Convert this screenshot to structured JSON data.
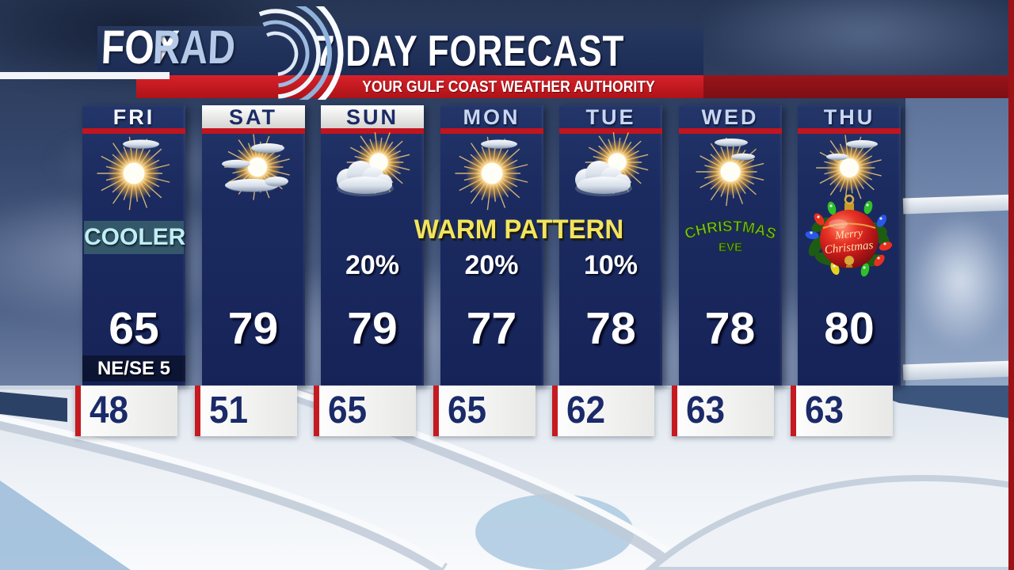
{
  "header": {
    "logo_fox": "FOX",
    "logo_rad": "RAD",
    "logo_name": "foxrad-radar-logo",
    "title": "7 DAY FORECAST",
    "tagline": "YOUR GULF COAST WEATHER AUTHORITY"
  },
  "banners": {
    "warm_pattern": "WARM PATTERN"
  },
  "colors": {
    "panel_navy": "#1b2b60",
    "bar_red": "#c3141f",
    "tagline_red": "#c51d25",
    "warm_yellow": "#f2e45e",
    "cooler_teal": "#3a5e6c",
    "cooler_text": "#bfeef4",
    "low_text_navy": "#1b2a68",
    "logo_rad_blue": "#b5cae9"
  },
  "days": [
    {
      "label": "FRI",
      "header_style": "navy",
      "today": true,
      "icon": "sun-wisp",
      "note": "COOLER",
      "precip": "",
      "high": "65",
      "wind": "NE/SE 5",
      "low": "48",
      "holiday": "",
      "ornament": ""
    },
    {
      "label": "SAT",
      "header_style": "white",
      "today": false,
      "icon": "sun-wisps",
      "note": "",
      "precip": "",
      "high": "79",
      "wind": "",
      "low": "51",
      "holiday": "",
      "ornament": ""
    },
    {
      "label": "SUN",
      "header_style": "white",
      "today": false,
      "icon": "sun-cloud",
      "note": "",
      "precip": "20%",
      "high": "79",
      "wind": "",
      "low": "65",
      "holiday": "",
      "ornament": ""
    },
    {
      "label": "MON",
      "header_style": "navy",
      "today": false,
      "icon": "sun-wisp",
      "note": "",
      "precip": "20%",
      "high": "77",
      "wind": "",
      "low": "65",
      "holiday": "",
      "ornament": ""
    },
    {
      "label": "TUE",
      "header_style": "navy",
      "today": false,
      "icon": "sun-cloud",
      "note": "",
      "precip": "10%",
      "high": "78",
      "wind": "",
      "low": "62",
      "holiday": "",
      "ornament": ""
    },
    {
      "label": "WED",
      "header_style": "navy",
      "today": false,
      "icon": "sun-wisp2",
      "note": "",
      "precip": "",
      "high": "78",
      "wind": "",
      "low": "63",
      "holiday": "CHRISTMAS EVE",
      "ornament": ""
    },
    {
      "label": "THU",
      "header_style": "navy",
      "today": false,
      "icon": "sun-thu",
      "note": "",
      "precip": "",
      "high": "80",
      "wind": "",
      "low": "63",
      "holiday": "",
      "ornament": "Merry Christmas"
    }
  ],
  "chart_data": {
    "type": "table",
    "title": "7 DAY FORECAST",
    "subtitle": "YOUR GULF COAST WEATHER AUTHORITY",
    "columns": [
      "day",
      "high_f",
      "low_f",
      "precip_chance",
      "annotation"
    ],
    "rows": [
      [
        "FRI",
        65,
        48,
        null,
        "COOLER / wind NE/SE 5"
      ],
      [
        "SAT",
        79,
        51,
        null,
        null
      ],
      [
        "SUN",
        79,
        65,
        "20%",
        "WARM PATTERN"
      ],
      [
        "MON",
        77,
        65,
        "20%",
        "WARM PATTERN"
      ],
      [
        "TUE",
        78,
        62,
        "10%",
        "WARM PATTERN"
      ],
      [
        "WED",
        78,
        63,
        null,
        "CHRISTMAS EVE"
      ],
      [
        "THU",
        80,
        63,
        null,
        "Merry Christmas"
      ]
    ]
  }
}
